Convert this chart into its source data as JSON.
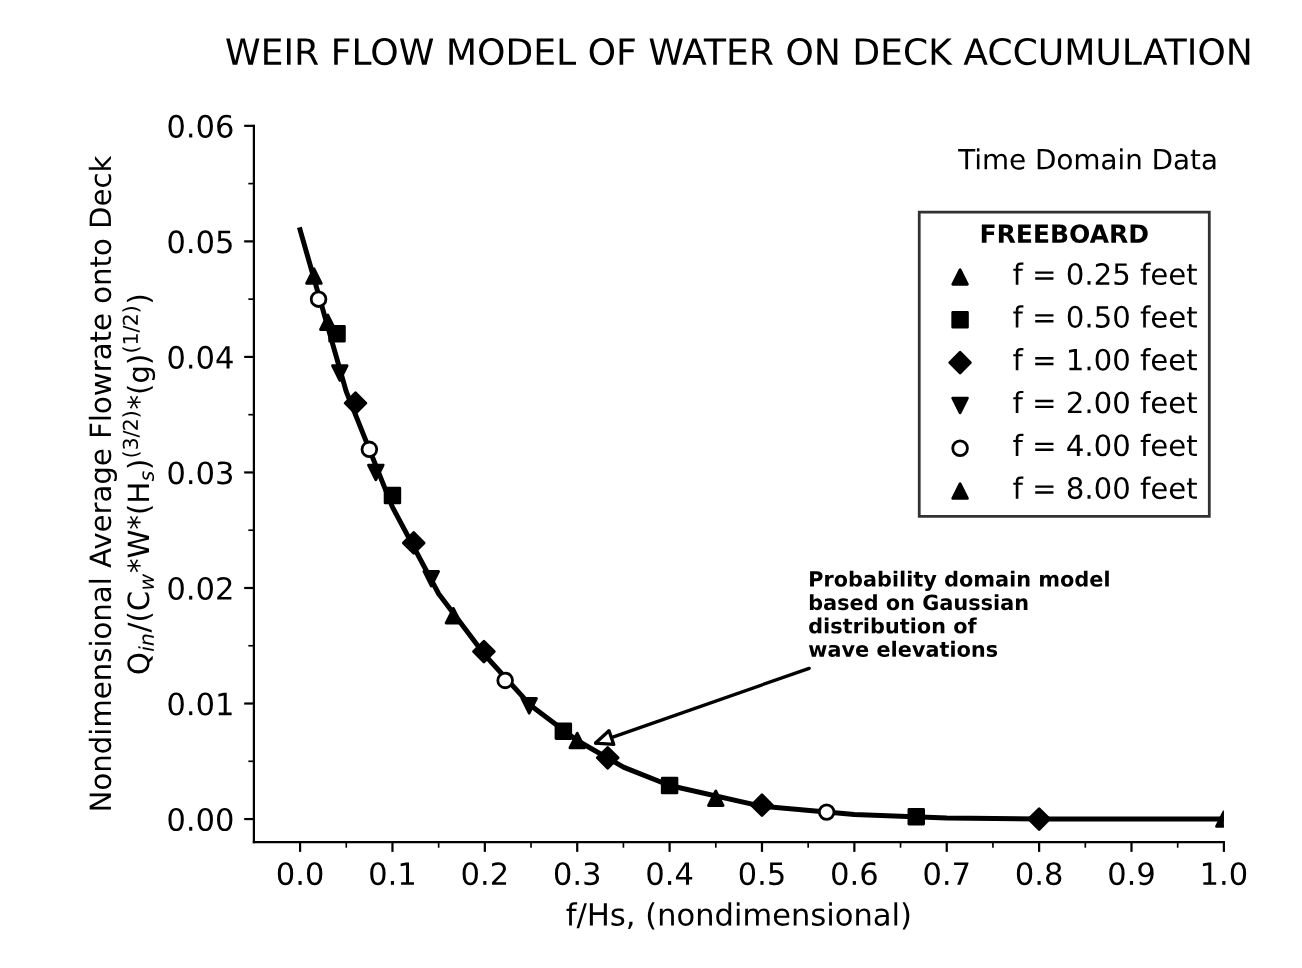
{
  "chart_data": {
    "type": "scatter",
    "title": "WEIR FLOW MODEL OF WATER ON DECK ACCUMULATION",
    "xlabel": "f/Hs, (nondimensional)",
    "ylabel": "Nondimensional Average Flowrate onto Deck\nQ$_{in}$/(C$_{w}$*W*(H$_{s}$)$^{(3/2)}$*(g)$^{(1/2)}$)",
    "legend_title": "FREEBOARD",
    "annotations": [
      "Time Domain Data",
      {
        "text": "Probability domain model\nbased on Gaussian\ndistribution of\nwave elevations",
        "x": 0.31,
        "y": 0.0063
      }
    ],
    "xlim": [
      -0.05,
      1.0
    ],
    "ylim": [
      -0.002,
      0.06
    ],
    "xticks": [
      {
        "value": 0.0,
        "label": "0.0"
      },
      {
        "value": 0.05,
        "label": null
      },
      {
        "value": 0.1,
        "label": "0.1"
      },
      {
        "value": 0.15,
        "label": null
      },
      {
        "value": 0.2,
        "label": "0.2"
      },
      {
        "value": 0.25,
        "label": null
      },
      {
        "value": 0.3,
        "label": "0.3"
      },
      {
        "value": 0.35,
        "label": null
      },
      {
        "value": 0.4,
        "label": "0.4"
      },
      {
        "value": 0.45,
        "label": null
      },
      {
        "value": 0.5,
        "label": "0.5"
      },
      {
        "value": 0.55,
        "label": null
      },
      {
        "value": 0.6,
        "label": "0.6"
      },
      {
        "value": 0.65,
        "label": null
      },
      {
        "value": 0.7,
        "label": "0.7"
      },
      {
        "value": 0.75,
        "label": null
      },
      {
        "value": 0.8,
        "label": "0.8"
      },
      {
        "value": 0.85,
        "label": null
      },
      {
        "value": 0.9,
        "label": "0.9"
      },
      {
        "value": 0.95,
        "label": null
      },
      {
        "value": 1.0,
        "label": "1.0"
      }
    ],
    "yticks": [
      {
        "value": 0.0,
        "label": "0.00"
      },
      {
        "value": 0.005,
        "label": null
      },
      {
        "value": 0.01,
        "label": "0.01"
      },
      {
        "value": 0.015,
        "label": null
      },
      {
        "value": 0.02,
        "label": "0.02"
      },
      {
        "value": 0.025,
        "label": null
      },
      {
        "value": 0.03,
        "label": "0.03"
      },
      {
        "value": 0.035,
        "label": null
      },
      {
        "value": 0.04,
        "label": "0.04"
      },
      {
        "value": 0.045,
        "label": null
      },
      {
        "value": 0.05,
        "label": "0.05"
      },
      {
        "value": 0.055,
        "label": null
      },
      {
        "value": 0.06,
        "label": "0.06"
      }
    ],
    "grid": false,
    "legend": "top right",
    "series": [
      {
        "name": "f = 0.25 feet",
        "color": "#000000",
        "marker": "triangle",
        "x": [
          0.015,
          0.45,
          1.0
        ],
        "values": [
          0.047,
          0.0018,
          0.0
        ]
      },
      {
        "name": "f = 0.50 feet",
        "color": "#000000",
        "marker": "square",
        "x": [
          0.04,
          0.1,
          0.285,
          0.4,
          0.667
        ],
        "values": [
          0.042,
          0.028,
          0.0076,
          0.0029,
          0.0002
        ]
      },
      {
        "name": "f = 1.00 feet",
        "color": "#000000",
        "marker": "diamond",
        "x": [
          0.06,
          0.123,
          0.199,
          0.333,
          0.5,
          0.8
        ],
        "values": [
          0.036,
          0.0239,
          0.0145,
          0.0053,
          0.0012,
          0.0
        ]
      },
      {
        "name": "f = 2.00 feet",
        "color": "#000000",
        "marker": "triangle_down",
        "x": [
          0.043,
          0.082,
          0.142,
          0.248
        ],
        "values": [
          0.0386,
          0.03,
          0.0208,
          0.0098
        ]
      },
      {
        "name": "f = 4.00 feet",
        "color": "#000000",
        "marker": "open_circle",
        "x": [
          0.02,
          0.075,
          0.222,
          0.57
        ],
        "values": [
          0.045,
          0.032,
          0.012,
          0.0006
        ]
      },
      {
        "name": "f = 8.00 feet",
        "color": "#000000",
        "marker": "triangle",
        "x": [
          0.03,
          0.166,
          0.3
        ],
        "values": [
          0.043,
          0.0176,
          0.0068
        ]
      },
      {
        "type": "line",
        "color": "#000000",
        "marker": "none",
        "line_style": "solid",
        "x": [
          0.0,
          0.05,
          0.1,
          0.15,
          0.2,
          0.25,
          0.3,
          0.35,
          0.4,
          0.5,
          0.6,
          0.7,
          0.8,
          0.9,
          1.0
        ],
        "values": [
          0.051,
          0.037,
          0.027,
          0.0195,
          0.0142,
          0.0098,
          0.0068,
          0.0045,
          0.0029,
          0.0011,
          0.0004,
          0.0001,
          0.0,
          0.0,
          0.0
        ]
      }
    ]
  }
}
